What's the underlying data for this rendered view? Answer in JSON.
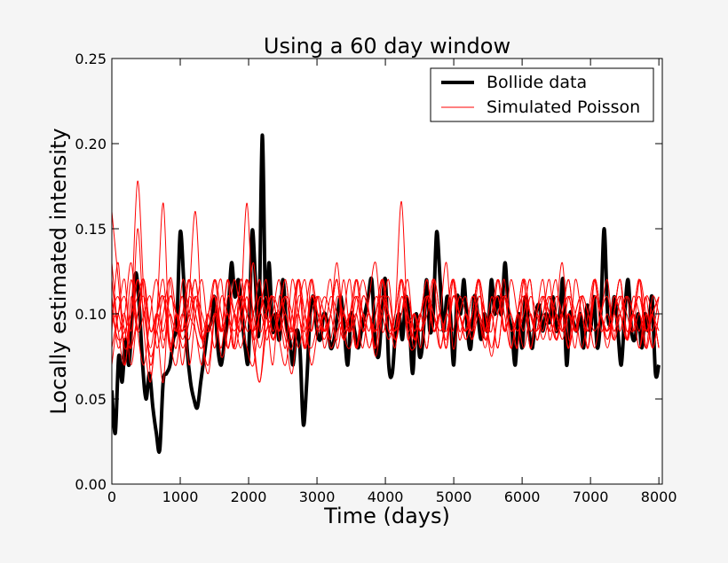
{
  "chart_data": {
    "type": "line",
    "title": "Using a 60 day window",
    "xlabel": "Time (days)",
    "ylabel": "Locally estimated intensity",
    "xlim": [
      0,
      8050
    ],
    "ylim": [
      0,
      0.25
    ],
    "x_ticks": [
      "0",
      "1000",
      "2000",
      "3000",
      "4000",
      "5000",
      "6000",
      "7000",
      "8000"
    ],
    "y_ticks": [
      "0.00",
      "0.05",
      "0.10",
      "0.15",
      "0.20",
      "0.25"
    ],
    "grid": false,
    "legend_position": "top-right",
    "legend": [
      {
        "label": "Bollide data",
        "color": "#000000"
      },
      {
        "label": "Simulated Poisson",
        "color": "#ff0000"
      }
    ],
    "x_step_days": 50,
    "bollide": [
      0.055,
      0.03,
      0.075,
      0.06,
      0.085,
      0.07,
      0.1,
      0.124,
      0.105,
      0.07,
      0.05,
      0.065,
      0.045,
      0.03,
      0.02,
      0.06,
      0.065,
      0.07,
      0.085,
      0.095,
      0.148,
      0.12,
      0.08,
      0.06,
      0.05,
      0.045,
      0.06,
      0.075,
      0.09,
      0.095,
      0.11,
      0.08,
      0.07,
      0.085,
      0.1,
      0.13,
      0.11,
      0.12,
      0.1,
      0.08,
      0.075,
      0.148,
      0.12,
      0.09,
      0.205,
      0.1,
      0.13,
      0.09,
      0.1,
      0.085,
      0.12,
      0.095,
      0.085,
      0.07,
      0.09,
      0.08,
      0.035,
      0.06,
      0.1,
      0.11,
      0.09,
      0.085,
      0.1,
      0.095,
      0.08,
      0.085,
      0.1,
      0.11,
      0.09,
      0.07,
      0.1,
      0.09,
      0.08,
      0.09,
      0.1,
      0.11,
      0.12,
      0.085,
      0.075,
      0.1,
      0.12,
      0.07,
      0.065,
      0.09,
      0.1,
      0.085,
      0.11,
      0.095,
      0.065,
      0.1,
      0.075,
      0.085,
      0.12,
      0.09,
      0.1,
      0.148,
      0.12,
      0.09,
      0.11,
      0.1,
      0.07,
      0.11,
      0.1,
      0.12,
      0.09,
      0.08,
      0.11,
      0.1,
      0.085,
      0.1,
      0.09,
      0.12,
      0.1,
      0.11,
      0.1,
      0.13,
      0.1,
      0.09,
      0.07,
      0.1,
      0.08,
      0.11,
      0.09,
      0.08,
      0.1,
      0.105,
      0.09,
      0.1,
      0.095,
      0.11,
      0.09,
      0.1,
      0.12,
      0.07,
      0.1,
      0.095,
      0.09,
      0.1,
      0.08,
      0.105,
      0.09,
      0.11,
      0.08,
      0.1,
      0.15,
      0.1,
      0.095,
      0.11,
      0.09,
      0.07,
      0.1,
      0.12,
      0.09,
      0.085,
      0.1,
      0.08,
      0.1,
      0.09,
      0.11,
      0.065,
      0.07
    ],
    "simulations": [
      {
        "name": "sim-1",
        "values": [
          0.16,
          0.12,
          0.08,
          0.1,
          0.178,
          0.11,
          0.07,
          0.09,
          0.06,
          0.12,
          0.1,
          0.08,
          0.095,
          0.11,
          0.085,
          0.07,
          0.1,
          0.09,
          0.12,
          0.08,
          0.1,
          0.165,
          0.09,
          0.06,
          0.1,
          0.11,
          0.085,
          0.07,
          0.1,
          0.12,
          0.09,
          0.08,
          0.095,
          0.11,
          0.1,
          0.085,
          0.12,
          0.09,
          0.1,
          0.08,
          0.11,
          0.13,
          0.09,
          0.1,
          0.08,
          0.11,
          0.095,
          0.1,
          0.09,
          0.1,
          0.12,
          0.08,
          0.1,
          0.09,
          0.11,
          0.1,
          0.085,
          0.1,
          0.09,
          0.11,
          0.1,
          0.12,
          0.08,
          0.1,
          0.09,
          0.11,
          0.1,
          0.085,
          0.1,
          0.12,
          0.09,
          0.1,
          0.08,
          0.11,
          0.1,
          0.09,
          0.1,
          0.12,
          0.085,
          0.1,
          0.11,
          0.09,
          0.1,
          0.08,
          0.11,
          0.1
        ]
      },
      {
        "name": "sim-2",
        "values": [
          0.09,
          0.13,
          0.07,
          0.11,
          0.09,
          0.12,
          0.065,
          0.1,
          0.165,
          0.08,
          0.1,
          0.07,
          0.11,
          0.16,
          0.09,
          0.065,
          0.1,
          0.12,
          0.08,
          0.1,
          0.09,
          0.11,
          0.08,
          0.06,
          0.09,
          0.1,
          0.12,
          0.09,
          0.08,
          0.11,
          0.1,
          0.07,
          0.09,
          0.1,
          0.12,
          0.08,
          0.1,
          0.09,
          0.11,
          0.1,
          0.08,
          0.1,
          0.12,
          0.09,
          0.1,
          0.166,
          0.09,
          0.08,
          0.1,
          0.11,
          0.09,
          0.1,
          0.085,
          0.12,
          0.1,
          0.09,
          0.11,
          0.1,
          0.08,
          0.1,
          0.11,
          0.09,
          0.12,
          0.1,
          0.08,
          0.1,
          0.09,
          0.11,
          0.1,
          0.085,
          0.1,
          0.11,
          0.09,
          0.1,
          0.08,
          0.12,
          0.1,
          0.09,
          0.11,
          0.1,
          0.085,
          0.1,
          0.09,
          0.11,
          0.08,
          0.1
        ]
      },
      {
        "name": "sim-3",
        "values": [
          0.07,
          0.1,
          0.12,
          0.08,
          0.15,
          0.09,
          0.06,
          0.1,
          0.11,
          0.085,
          0.07,
          0.1,
          0.12,
          0.09,
          0.08,
          0.1,
          0.11,
          0.075,
          0.09,
          0.12,
          0.1,
          0.08,
          0.07,
          0.1,
          0.09,
          0.11,
          0.1,
          0.085,
          0.065,
          0.1,
          0.12,
          0.09,
          0.11,
          0.1,
          0.08,
          0.09,
          0.1,
          0.12,
          0.08,
          0.1,
          0.09,
          0.11,
          0.1,
          0.085,
          0.1,
          0.12,
          0.09,
          0.1,
          0.08,
          0.11,
          0.1,
          0.09,
          0.1,
          0.12,
          0.085,
          0.1,
          0.09,
          0.11,
          0.1,
          0.08,
          0.1,
          0.11,
          0.09,
          0.1,
          0.12,
          0.08,
          0.1,
          0.09,
          0.11,
          0.1,
          0.085,
          0.1,
          0.09,
          0.11,
          0.1,
          0.08,
          0.1,
          0.11,
          0.09,
          0.1,
          0.085,
          0.11,
          0.1,
          0.09,
          0.1,
          0.11
        ]
      },
      {
        "name": "sim-4",
        "values": [
          0.11,
          0.08,
          0.1,
          0.13,
          0.09,
          0.07,
          0.1,
          0.12,
          0.085,
          0.1,
          0.09,
          0.11,
          0.07,
          0.1,
          0.12,
          0.09,
          0.1,
          0.08,
          0.11,
          0.1,
          0.09,
          0.12,
          0.1,
          0.08,
          0.1,
          0.11,
          0.09,
          0.1,
          0.085,
          0.12,
          0.1,
          0.09,
          0.11,
          0.08,
          0.1,
          0.12,
          0.09,
          0.1,
          0.08,
          0.11,
          0.1,
          0.09,
          0.12,
          0.1,
          0.085,
          0.1,
          0.11,
          0.09,
          0.1,
          0.08,
          0.12,
          0.1,
          0.09,
          0.11,
          0.1,
          0.085,
          0.1,
          0.12,
          0.09,
          0.1,
          0.08,
          0.11,
          0.1,
          0.09,
          0.1,
          0.12,
          0.085,
          0.1,
          0.09,
          0.11,
          0.1,
          0.08,
          0.1,
          0.11,
          0.09,
          0.12,
          0.1,
          0.085,
          0.1,
          0.09,
          0.11,
          0.1,
          0.08,
          0.1,
          0.09,
          0.11
        ]
      },
      {
        "name": "sim-5",
        "values": [
          0.1,
          0.085,
          0.09,
          0.1,
          0.11,
          0.12,
          0.09,
          0.1,
          0.08,
          0.11,
          0.1,
          0.09,
          0.1,
          0.12,
          0.085,
          0.1,
          0.11,
          0.09,
          0.1,
          0.08,
          0.12,
          0.1,
          0.09,
          0.11,
          0.1,
          0.085,
          0.1,
          0.12,
          0.09,
          0.1,
          0.08,
          0.11,
          0.1,
          0.09,
          0.1,
          0.12,
          0.085,
          0.1,
          0.11,
          0.09,
          0.1,
          0.08,
          0.12,
          0.1,
          0.09,
          0.11,
          0.1,
          0.085,
          0.1,
          0.12,
          0.09,
          0.1,
          0.08,
          0.11,
          0.1,
          0.09,
          0.1,
          0.12,
          0.085,
          0.1,
          0.11,
          0.09,
          0.1,
          0.08,
          0.12,
          0.1,
          0.09,
          0.11,
          0.1,
          0.085,
          0.1,
          0.12,
          0.09,
          0.1,
          0.08,
          0.11,
          0.1,
          0.09,
          0.1,
          0.12,
          0.085,
          0.1,
          0.11,
          0.09,
          0.1,
          0.08
        ]
      },
      {
        "name": "sim-6",
        "values": [
          0.12,
          0.09,
          0.1,
          0.07,
          0.1,
          0.11,
          0.09,
          0.1,
          0.12,
          0.08,
          0.1,
          0.09,
          0.11,
          0.1,
          0.085,
          0.1,
          0.12,
          0.09,
          0.1,
          0.08,
          0.11,
          0.1,
          0.09,
          0.1,
          0.12,
          0.085,
          0.1,
          0.11,
          0.09,
          0.1,
          0.08,
          0.12,
          0.1,
          0.09,
          0.11,
          0.1,
          0.085,
          0.1,
          0.12,
          0.09,
          0.1,
          0.08,
          0.11,
          0.1,
          0.09,
          0.1,
          0.12,
          0.085,
          0.1,
          0.11,
          0.09,
          0.1,
          0.08,
          0.12,
          0.1,
          0.09,
          0.11,
          0.1,
          0.085,
          0.1,
          0.12,
          0.09,
          0.1,
          0.08,
          0.11,
          0.1,
          0.09,
          0.1,
          0.12,
          0.085,
          0.1,
          0.11,
          0.09,
          0.1,
          0.08,
          0.12,
          0.1,
          0.09,
          0.11,
          0.1,
          0.085,
          0.1,
          0.12,
          0.09,
          0.1,
          0.08
        ]
      },
      {
        "name": "sim-7",
        "values": [
          0.08,
          0.1,
          0.11,
          0.09,
          0.12,
          0.1,
          0.08,
          0.1,
          0.09,
          0.11,
          0.1,
          0.085,
          0.1,
          0.12,
          0.09,
          0.1,
          0.08,
          0.11,
          0.1,
          0.09,
          0.1,
          0.12,
          0.085,
          0.1,
          0.11,
          0.09,
          0.1,
          0.08,
          0.12,
          0.1,
          0.09,
          0.11,
          0.1,
          0.085,
          0.1,
          0.12,
          0.09,
          0.1,
          0.08,
          0.11,
          0.1,
          0.09,
          0.1,
          0.12,
          0.085,
          0.1,
          0.11,
          0.09,
          0.1,
          0.08,
          0.12,
          0.1,
          0.09,
          0.11,
          0.1,
          0.085,
          0.1,
          0.12,
          0.09,
          0.1,
          0.08,
          0.11,
          0.1,
          0.09,
          0.1,
          0.12,
          0.085,
          0.1,
          0.11,
          0.09,
          0.1,
          0.08,
          0.12,
          0.1,
          0.09,
          0.11,
          0.1,
          0.085,
          0.1,
          0.12,
          0.09,
          0.1,
          0.08,
          0.11,
          0.1,
          0.09
        ]
      },
      {
        "name": "sim-8",
        "values": [
          0.095,
          0.1,
          0.085,
          0.12,
          0.09,
          0.1,
          0.11,
          0.08,
          0.1,
          0.12,
          0.09,
          0.1,
          0.085,
          0.11,
          0.1,
          0.09,
          0.12,
          0.1,
          0.08,
          0.1,
          0.11,
          0.09,
          0.1,
          0.12,
          0.085,
          0.1,
          0.09,
          0.11,
          0.1,
          0.08,
          0.1,
          0.12,
          0.09,
          0.1,
          0.085,
          0.11,
          0.1,
          0.09,
          0.12,
          0.1,
          0.08,
          0.1,
          0.11,
          0.09,
          0.1,
          0.12,
          0.085,
          0.1,
          0.09,
          0.11,
          0.1,
          0.08,
          0.1,
          0.12,
          0.09,
          0.1,
          0.085,
          0.11,
          0.1,
          0.09,
          0.12,
          0.1,
          0.08,
          0.1,
          0.11,
          0.09,
          0.1,
          0.12,
          0.085,
          0.1,
          0.09,
          0.11,
          0.1,
          0.08,
          0.1,
          0.12,
          0.09,
          0.1,
          0.085,
          0.11,
          0.1,
          0.09,
          0.12,
          0.1,
          0.08,
          0.1
        ]
      },
      {
        "name": "sim-9",
        "values": [
          0.13,
          0.09,
          0.07,
          0.1,
          0.12,
          0.1,
          0.075,
          0.09,
          0.11,
          0.1,
          0.08,
          0.12,
          0.1,
          0.09,
          0.07,
          0.1,
          0.11,
          0.09,
          0.12,
          0.1,
          0.08,
          0.1,
          0.13,
          0.09,
          0.1,
          0.07,
          0.11,
          0.1,
          0.09,
          0.12,
          0.08,
          0.1,
          0.11,
          0.09,
          0.1,
          0.13,
          0.09,
          0.08,
          0.1,
          0.12,
          0.1,
          0.075,
          0.1,
          0.11,
          0.09,
          0.12,
          0.1,
          0.08,
          0.1,
          0.11,
          0.09,
          0.1,
          0.13,
          0.08,
          0.1,
          0.11,
          0.09,
          0.12,
          0.1,
          0.075,
          0.1,
          0.11,
          0.09,
          0.1,
          0.12,
          0.08,
          0.1,
          0.11,
          0.09,
          0.1,
          0.13,
          0.085,
          0.1,
          0.11,
          0.09,
          0.12,
          0.1,
          0.08,
          0.1,
          0.11,
          0.09,
          0.1,
          0.12,
          0.08,
          0.1,
          0.11
        ]
      },
      {
        "name": "sim-10",
        "values": [
          0.1,
          0.11,
          0.09,
          0.08,
          0.1,
          0.12,
          0.09,
          0.1,
          0.11,
          0.08,
          0.1,
          0.09,
          0.12,
          0.1,
          0.085,
          0.1,
          0.11,
          0.09,
          0.1,
          0.08,
          0.12,
          0.1,
          0.09,
          0.11,
          0.1,
          0.085,
          0.1,
          0.12,
          0.09,
          0.1,
          0.08,
          0.11,
          0.1,
          0.09,
          0.1,
          0.12,
          0.085,
          0.1,
          0.11,
          0.09,
          0.1,
          0.08,
          0.12,
          0.1,
          0.09,
          0.11,
          0.1,
          0.085,
          0.1,
          0.12,
          0.09,
          0.1,
          0.08,
          0.11,
          0.1,
          0.09,
          0.1,
          0.12,
          0.085,
          0.1,
          0.11,
          0.09,
          0.1,
          0.08,
          0.12,
          0.1,
          0.09,
          0.11,
          0.1,
          0.085,
          0.1,
          0.12,
          0.09,
          0.1,
          0.08,
          0.11,
          0.1,
          0.09,
          0.1,
          0.12,
          0.085,
          0.1,
          0.11,
          0.09,
          0.1,
          0.08
        ]
      }
    ]
  }
}
